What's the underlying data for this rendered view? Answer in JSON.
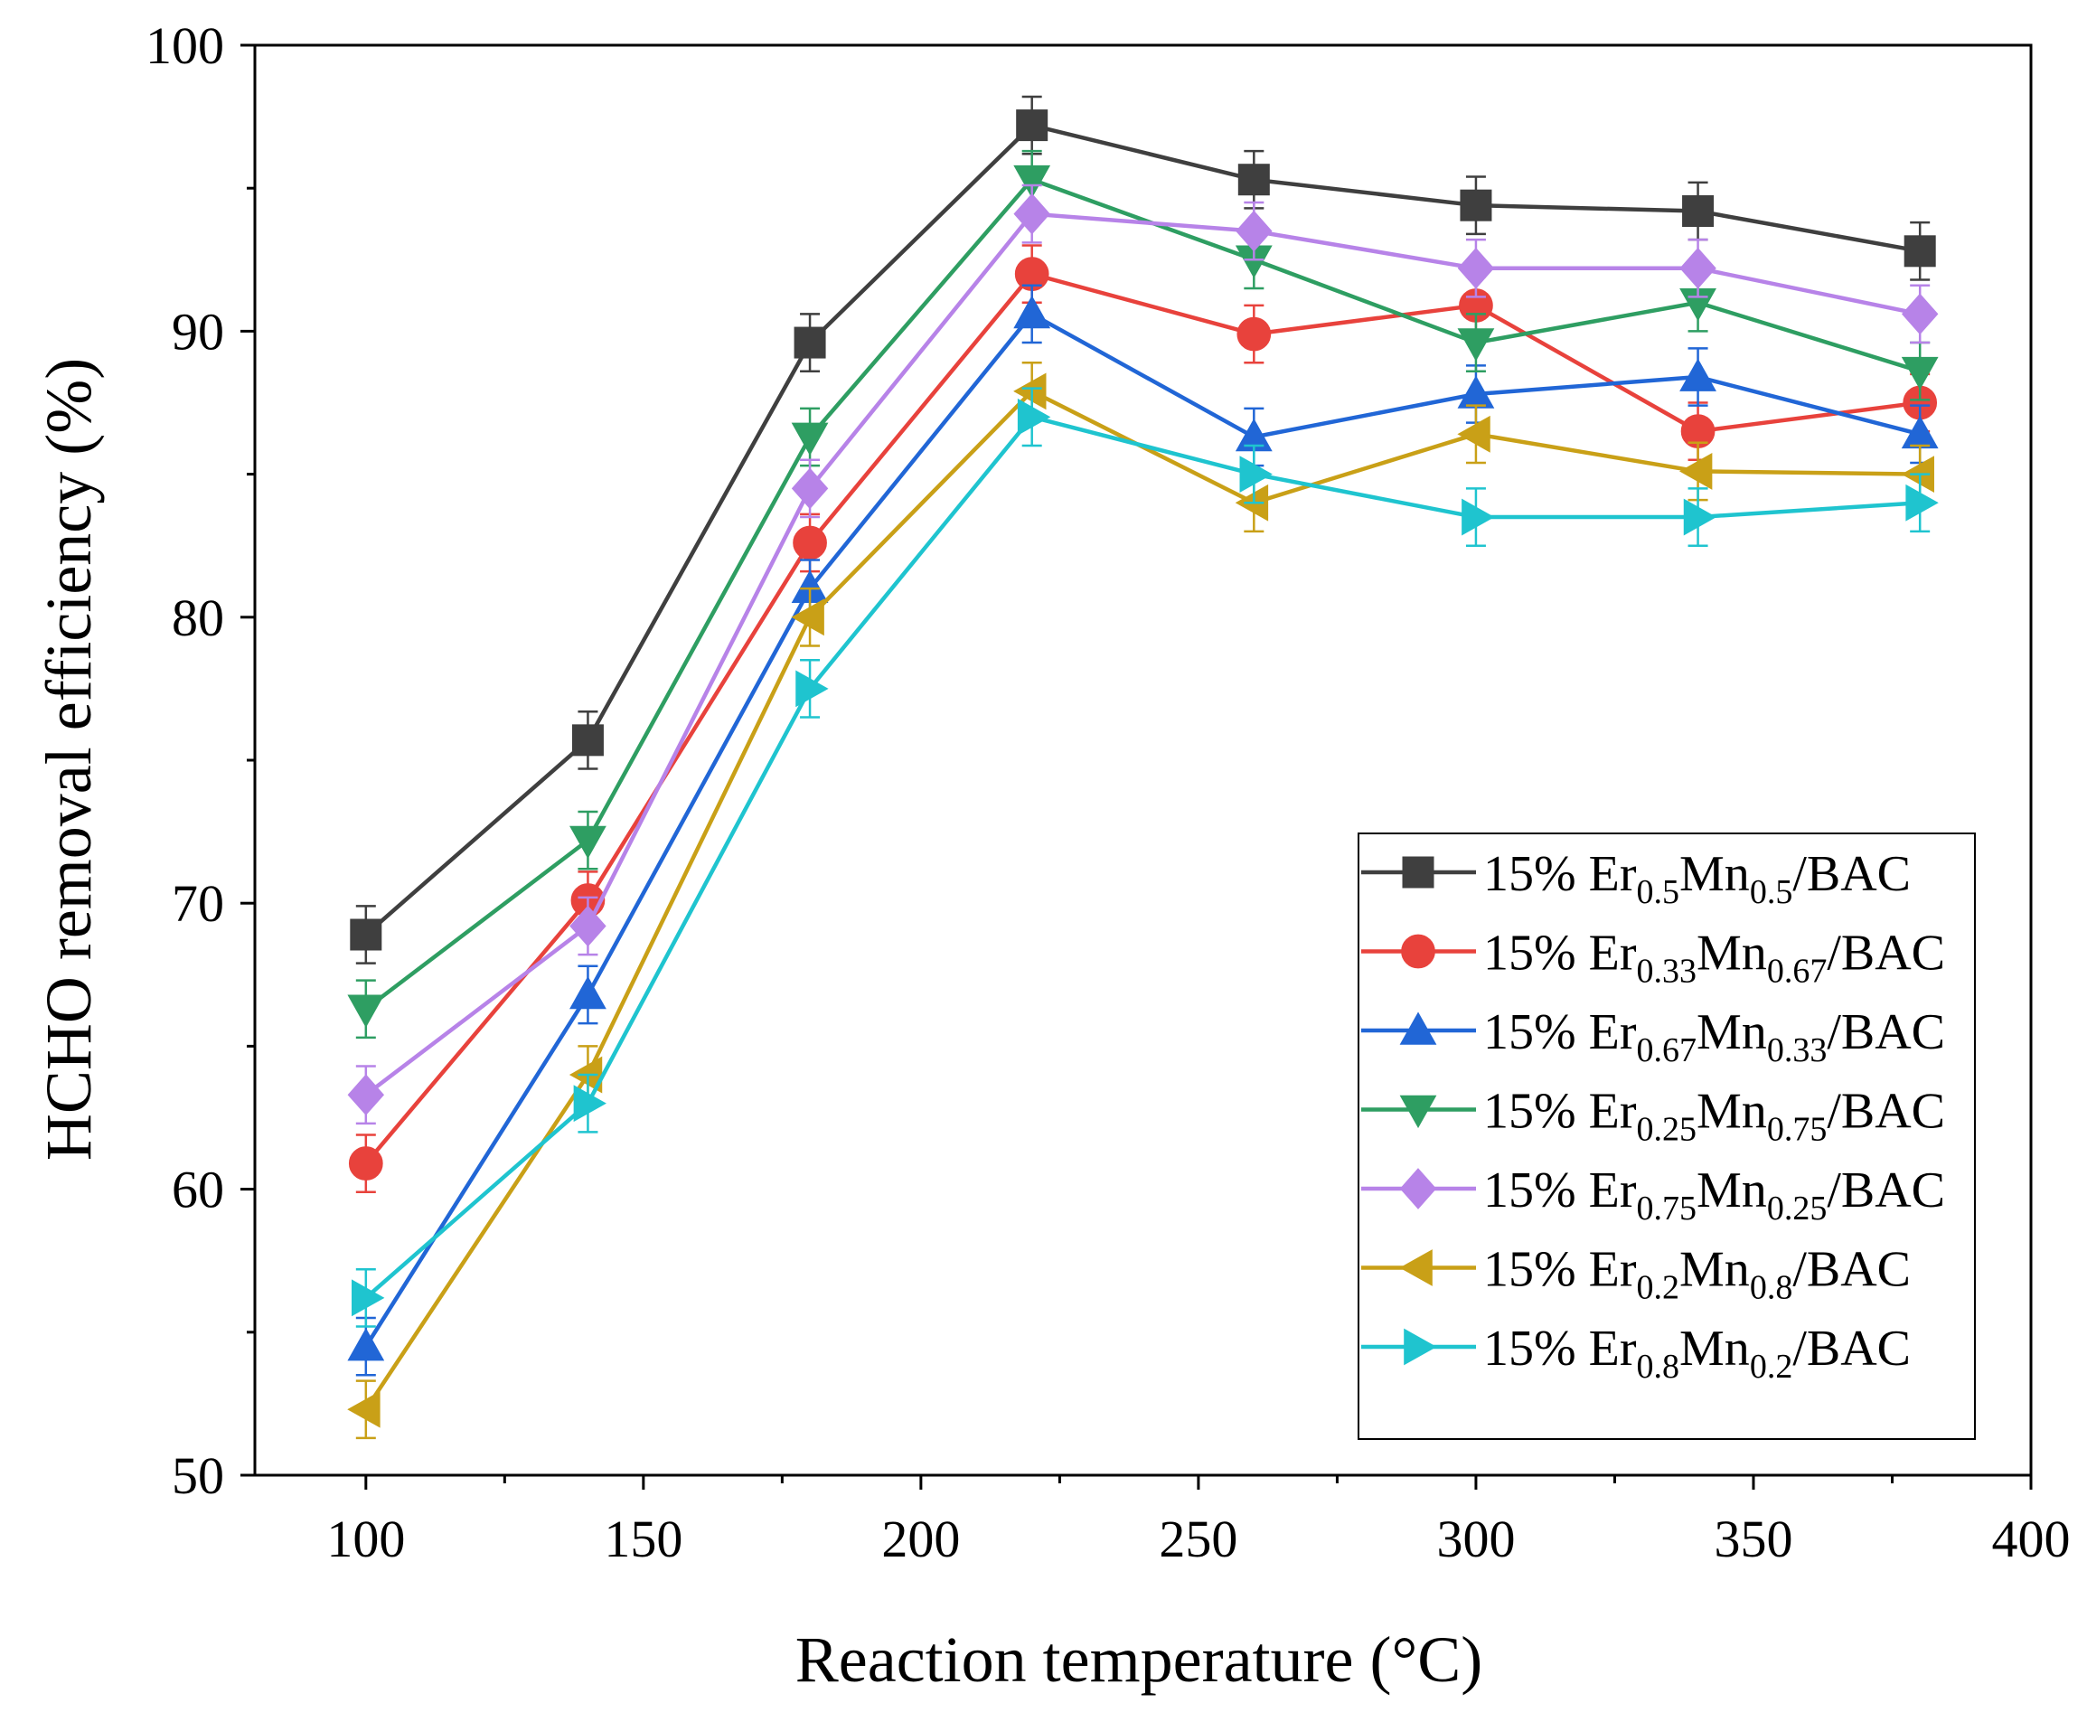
{
  "chart_data": {
    "type": "line",
    "title": "",
    "xlabel": "Reaction temperature (°C)",
    "ylabel": "HCHO removal efficiency (%)",
    "xlim": [
      80,
      400
    ],
    "ylim": [
      50,
      100
    ],
    "x_ticks": [
      100,
      150,
      200,
      250,
      300,
      350,
      400
    ],
    "y_ticks": [
      50,
      60,
      70,
      80,
      90,
      100
    ],
    "grid": false,
    "legend_position": "lower-right",
    "x": [
      100,
      140,
      180,
      220,
      260,
      300,
      340,
      380
    ],
    "series": [
      {
        "name": "15% Er0.5Mn0.5/BAC",
        "legend": {
          "prefix": "15% Er",
          "sub1": "0.5",
          "mid": "Mn",
          "sub2": "0.5",
          "suffix": "/BAC"
        },
        "color": "#3f3f3f",
        "marker": "square",
        "values": [
          68.9,
          75.7,
          89.6,
          97.2,
          95.3,
          94.4,
          94.2,
          92.8
        ],
        "errors": [
          1.0,
          1.0,
          1.0,
          1.0,
          1.0,
          1.0,
          1.0,
          1.0
        ]
      },
      {
        "name": "15% Er0.33Mn0.67/BAC",
        "legend": {
          "prefix": "15% Er",
          "sub1": "0.33",
          "mid": "Mn",
          "sub2": "0.67",
          "suffix": "/BAC"
        },
        "color": "#e8423c",
        "marker": "circle",
        "values": [
          60.9,
          70.1,
          82.6,
          92.0,
          89.9,
          90.9,
          86.5,
          87.5
        ],
        "errors": [
          1.0,
          1.0,
          1.0,
          1.0,
          1.0,
          1.0,
          1.0,
          1.0
        ]
      },
      {
        "name": "15% Er0.67Mn0.33/BAC",
        "legend": {
          "prefix": "15% Er",
          "sub1": "0.67",
          "mid": "Mn",
          "sub2": "0.33",
          "suffix": "/BAC"
        },
        "color": "#2166d6",
        "marker": "triangle-up",
        "values": [
          54.5,
          66.8,
          81.0,
          90.6,
          86.3,
          87.8,
          88.4,
          86.4
        ],
        "errors": [
          1.0,
          1.0,
          1.0,
          1.0,
          1.0,
          1.0,
          1.0,
          1.0
        ]
      },
      {
        "name": "15% Er0.25Mn0.75/BAC",
        "legend": {
          "prefix": "15% Er",
          "sub1": "0.25",
          "mid": "Mn",
          "sub2": "0.75",
          "suffix": "/BAC"
        },
        "color": "#2e9e62",
        "marker": "triangle-down",
        "values": [
          66.3,
          72.2,
          86.3,
          95.3,
          92.5,
          89.6,
          91.0,
          88.6
        ],
        "errors": [
          1.0,
          1.0,
          1.0,
          1.0,
          1.0,
          1.0,
          1.0,
          1.0
        ]
      },
      {
        "name": "15% Er0.75Mn0.25/BAC",
        "legend": {
          "prefix": "15% Er",
          "sub1": "0.75",
          "mid": "Mn",
          "sub2": "0.25",
          "suffix": "/BAC"
        },
        "color": "#b783e8",
        "marker": "diamond",
        "values": [
          63.3,
          69.2,
          84.5,
          94.1,
          93.5,
          92.2,
          92.2,
          90.6
        ],
        "errors": [
          1.0,
          1.0,
          1.0,
          1.0,
          1.0,
          1.0,
          1.0,
          1.0
        ]
      },
      {
        "name": "15% Er0.2Mn0.8/BAC",
        "legend": {
          "prefix": "15% Er",
          "sub1": "0.2",
          "mid": "Mn",
          "sub2": "0.8",
          "suffix": "/BAC"
        },
        "color": "#c9a017",
        "marker": "triangle-left",
        "values": [
          52.3,
          64.0,
          80.0,
          87.9,
          84.0,
          86.4,
          85.1,
          85.0
        ],
        "errors": [
          1.0,
          1.0,
          1.0,
          1.0,
          1.0,
          1.0,
          1.0,
          1.0
        ]
      },
      {
        "name": "15% Er0.8Mn0.2/BAC",
        "legend": {
          "prefix": "15% Er",
          "sub1": "0.8",
          "mid": "Mn",
          "sub2": "0.2",
          "suffix": "/BAC"
        },
        "color": "#1fc4cf",
        "marker": "triangle-right",
        "values": [
          56.2,
          63.0,
          77.5,
          87.0,
          85.0,
          83.5,
          83.5,
          84.0
        ],
        "errors": [
          1.0,
          1.0,
          1.0,
          1.0,
          1.0,
          1.0,
          1.0,
          1.0
        ]
      }
    ]
  }
}
